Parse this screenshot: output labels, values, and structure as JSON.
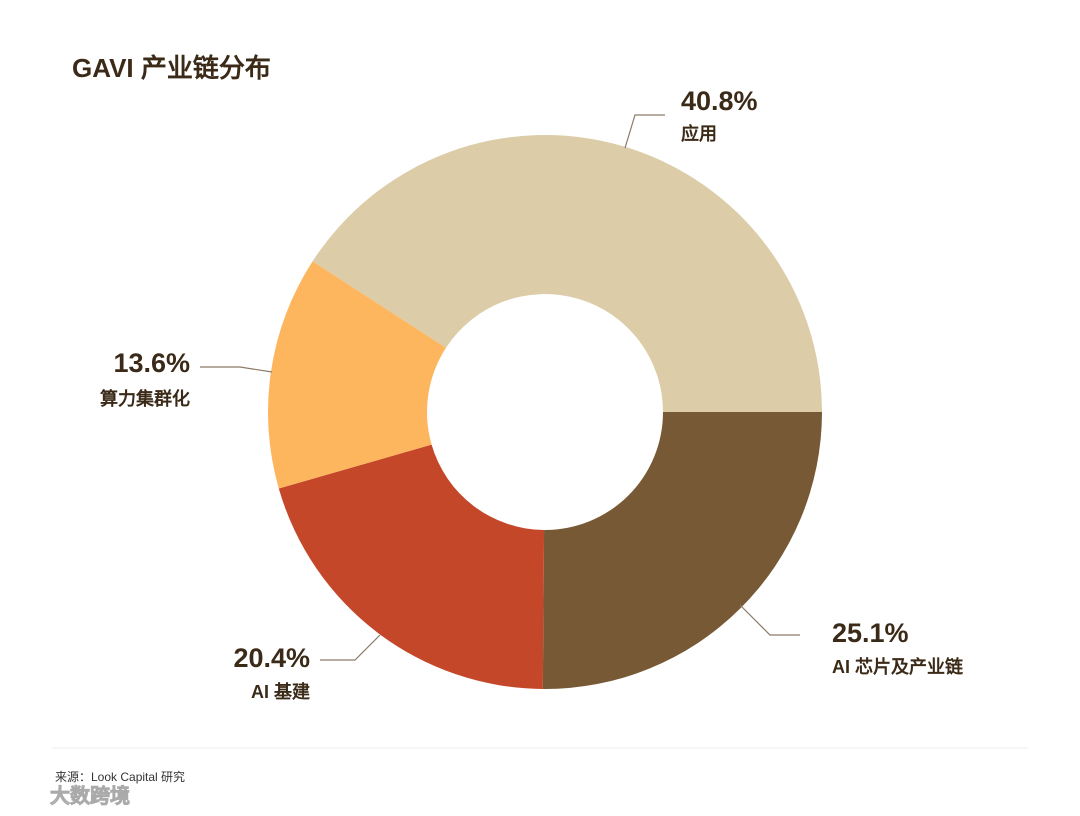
{
  "chart_data": {
    "type": "pie",
    "title": "GAVI 产业链分布",
    "categories": [
      "AI 芯片及产业链",
      "AI 基建",
      "算力集群化",
      "应用"
    ],
    "values": [
      25.1,
      20.4,
      13.6,
      40.8
    ],
    "value_labels": [
      "25.1%",
      "20.4%",
      "13.6%",
      "40.8%"
    ],
    "colors": [
      "#775a35",
      "#c4472a",
      "#fdb65e",
      "#dccca8"
    ],
    "donut": true,
    "source": "来源：Look Capital 研究",
    "watermark": "大数跨境"
  }
}
